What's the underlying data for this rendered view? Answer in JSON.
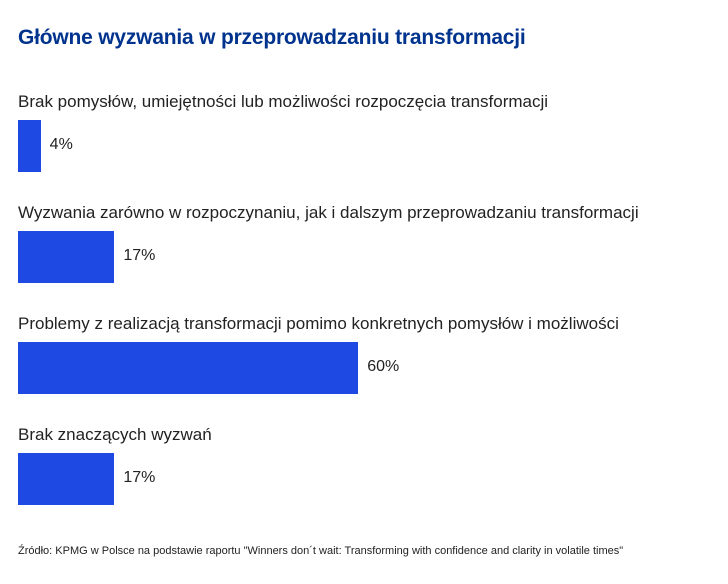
{
  "chart_data": {
    "type": "bar",
    "orientation": "horizontal",
    "title": "Główne wyzwania w przeprowadzaniu transformacji",
    "categories": [
      "Brak pomysłów, umiejętności lub możliwości rozpoczęcia transformacji",
      "Wyzwania zarówno w rozpoczynaniu, jak i dalszym przeprowadzaniu transformacji",
      "Problemy z realizacją transformacji pomimo konkretnych pomysłów i możliwości",
      "Brak znaczących wyzwań"
    ],
    "values": [
      4,
      17,
      60,
      17
    ],
    "value_labels": [
      "4%",
      "17%",
      "60%",
      "17%"
    ],
    "unit": "%",
    "xlim": [
      0,
      100
    ],
    "grid": false,
    "bar_color": "#1e49e2",
    "source": "Źródło: KPMG w Polsce na podstawie raportu \"Winners don´t wait: Transforming with confidence and clarity in volatile times\""
  }
}
